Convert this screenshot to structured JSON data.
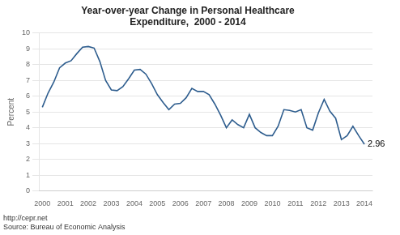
{
  "chart_data": {
    "type": "line",
    "title": "Year-over-year Change in Personal Healthcare\nExpenditure,  2000 - 2014",
    "ylabel": "Percent",
    "footnotes": [
      "http://cepr.net",
      "Source: Bureau of Economic Analysis"
    ],
    "annotations": [
      {
        "text": "2.96",
        "x": 2014.0,
        "y": 2.96
      }
    ],
    "color": "#2E5D8E",
    "grid": "y",
    "xlim": [
      1999.85,
      2014.35
    ],
    "xticks": [
      2000,
      2001,
      2002,
      2003,
      2004,
      2005,
      2006,
      2007,
      2008,
      2009,
      2010,
      2011,
      2012,
      2013,
      2014
    ],
    "ylim": [
      0,
      10
    ],
    "yticks": [
      0,
      1,
      2,
      3,
      4,
      5,
      6,
      7,
      8,
      9,
      10
    ],
    "x": [
      2000.0,
      2000.25,
      2000.5,
      2000.75,
      2001.0,
      2001.25,
      2001.5,
      2001.75,
      2002.0,
      2002.25,
      2002.5,
      2002.75,
      2003.0,
      2003.25,
      2003.5,
      2003.75,
      2004.0,
      2004.25,
      2004.5,
      2004.75,
      2005.0,
      2005.25,
      2005.5,
      2005.75,
      2006.0,
      2006.25,
      2006.5,
      2006.75,
      2007.0,
      2007.25,
      2007.5,
      2007.75,
      2008.0,
      2008.25,
      2008.5,
      2008.75,
      2009.0,
      2009.25,
      2009.5,
      2009.75,
      2010.0,
      2010.25,
      2010.5,
      2010.75,
      2011.0,
      2011.25,
      2011.5,
      2011.75,
      2012.0,
      2012.25,
      2012.5,
      2012.75,
      2013.0,
      2013.25,
      2013.5,
      2013.75,
      2014.0
    ],
    "values": [
      5.3,
      6.2,
      6.9,
      7.8,
      8.1,
      8.25,
      8.7,
      9.1,
      9.15,
      9.05,
      8.2,
      7.0,
      6.4,
      6.35,
      6.6,
      7.1,
      7.65,
      7.7,
      7.4,
      6.8,
      6.1,
      5.6,
      5.15,
      5.5,
      5.55,
      5.9,
      6.5,
      6.3,
      6.3,
      6.1,
      5.5,
      4.8,
      4.0,
      4.5,
      4.2,
      4.0,
      4.85,
      4.0,
      3.7,
      3.5,
      3.5,
      4.1,
      5.15,
      5.1,
      5.0,
      5.15,
      4.0,
      3.85,
      4.95,
      5.8,
      5.05,
      4.6,
      3.25,
      3.5,
      4.1,
      3.5,
      2.96
    ]
  }
}
